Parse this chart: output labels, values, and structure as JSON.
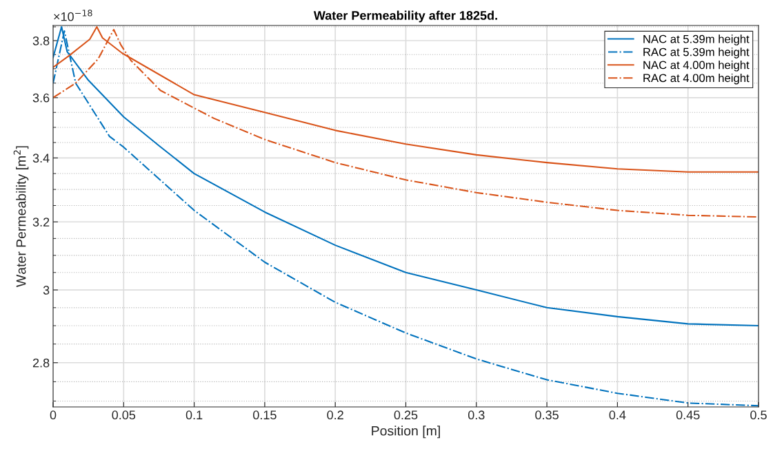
{
  "chart_data": {
    "type": "line",
    "title": "Water Permeability after 1825d.",
    "xlabel": "Position [m]",
    "ylabel": "Water Permeability [m$^{2}$]",
    "annotations": [
      "×10$^{−18}$"
    ],
    "log": "y",
    "xlim": [
      0,
      0.5
    ],
    "xticks": [
      0,
      0.05,
      0.1,
      0.15,
      0.2,
      0.25,
      0.3,
      0.35,
      0.4,
      0.45,
      0.5
    ],
    "ylim": [
      2.685,
      3.855
    ],
    "yticks": [
      {
        "value": 2.7,
        "label": null
      },
      {
        "value": 2.75,
        "label": null
      },
      2.8,
      {
        "value": 2.85,
        "label": null
      },
      {
        "value": 2.9,
        "label": null
      },
      {
        "value": 2.95,
        "label": null
      },
      3,
      {
        "value": 3.05,
        "label": null
      },
      {
        "value": 3.1,
        "label": null
      },
      {
        "value": 3.15,
        "label": null
      },
      3.2,
      {
        "value": 3.25,
        "label": null
      },
      {
        "value": 3.3,
        "label": null
      },
      {
        "value": 3.35,
        "label": null
      },
      3.4,
      {
        "value": 3.45,
        "label": null
      },
      {
        "value": 3.5,
        "label": null
      },
      {
        "value": 3.55,
        "label": null
      },
      3.6,
      {
        "value": 3.65,
        "label": null
      },
      {
        "value": 3.7,
        "label": null
      },
      {
        "value": 3.75,
        "label": null
      },
      3.8,
      {
        "value": 3.85,
        "label": null
      }
    ],
    "grid": true,
    "legend": "top right",
    "marker": "none",
    "series": [
      {
        "name": "NAC at 5.39m height",
        "color": "#0072bd",
        "line_style": "solid",
        "x": [
          0,
          0.006,
          0.01,
          0.025,
          0.05,
          0.075,
          0.1,
          0.15,
          0.2,
          0.25,
          0.3,
          0.35,
          0.4,
          0.45,
          0.5
        ],
        "values": [
          3.74,
          3.85,
          3.76,
          3.66,
          3.535,
          3.44,
          3.35,
          3.23,
          3.13,
          3.05,
          3.0,
          2.95,
          2.925,
          2.905,
          2.9
        ]
      },
      {
        "name": "RAC at 5.39m height",
        "color": "#0072bd",
        "line_style": "dashed",
        "x": [
          0,
          0.008,
          0.016,
          0.04,
          0.05,
          0.1,
          0.15,
          0.2,
          0.25,
          0.3,
          0.35,
          0.4,
          0.45,
          0.5
        ],
        "values": [
          3.65,
          3.835,
          3.65,
          3.47,
          3.435,
          3.235,
          3.08,
          2.965,
          2.88,
          2.81,
          2.755,
          2.72,
          2.695,
          2.688
        ]
      },
      {
        "name": "NAC at 4.00m height",
        "color": "#d95319",
        "line_style": "solid",
        "x": [
          0,
          0.011,
          0.026,
          0.031,
          0.035,
          0.049,
          0.1,
          0.15,
          0.2,
          0.25,
          0.3,
          0.35,
          0.4,
          0.45,
          0.5
        ],
        "values": [
          3.705,
          3.745,
          3.805,
          3.85,
          3.81,
          3.755,
          3.61,
          3.55,
          3.49,
          3.445,
          3.41,
          3.385,
          3.365,
          3.355,
          3.355
        ]
      },
      {
        "name": "RAC at 4.00m height",
        "color": "#d95319",
        "line_style": "dashed",
        "x": [
          0,
          0.016,
          0.032,
          0.043,
          0.048,
          0.055,
          0.076,
          0.114,
          0.15,
          0.2,
          0.25,
          0.3,
          0.35,
          0.4,
          0.45,
          0.5
        ],
        "values": [
          3.6,
          3.65,
          3.735,
          3.84,
          3.785,
          3.73,
          3.625,
          3.53,
          3.46,
          3.385,
          3.33,
          3.29,
          3.26,
          3.235,
          3.22,
          3.215
        ]
      }
    ]
  }
}
